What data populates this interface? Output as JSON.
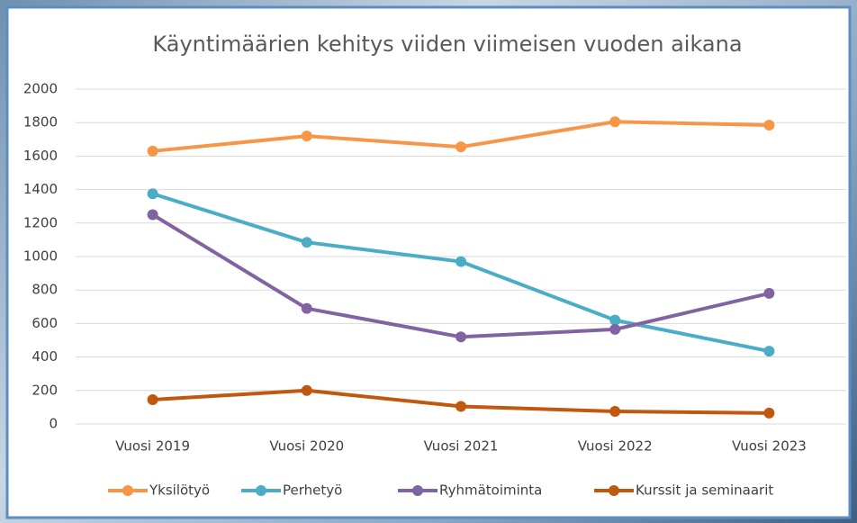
{
  "chart_data": {
    "type": "line",
    "title": "Käyntimäärien kehitys viiden viimeisen vuoden aikana",
    "categories": [
      "Vuosi 2019",
      "Vuosi 2020",
      "Vuosi 2021",
      "Vuosi 2022",
      "Vuosi 2023"
    ],
    "series": [
      {
        "name": "Yksilötyö",
        "color": "#f79646",
        "values": [
          1630,
          1720,
          1655,
          1805,
          1785
        ]
      },
      {
        "name": "Perhetyö",
        "color": "#4bacc6",
        "values": [
          1375,
          1085,
          970,
          620,
          435
        ]
      },
      {
        "name": "Ryhmätoiminta",
        "color": "#8064a2",
        "values": [
          1250,
          690,
          520,
          565,
          780
        ]
      },
      {
        "name": "Kurssit ja seminaarit",
        "color": "#c0580f",
        "values": [
          145,
          200,
          105,
          75,
          65
        ]
      }
    ],
    "ylim": [
      0,
      2000
    ],
    "yticks": [
      0,
      200,
      400,
      600,
      800,
      1000,
      1200,
      1400,
      1600,
      1800,
      2000
    ],
    "grid": true,
    "legend": "bottom"
  }
}
